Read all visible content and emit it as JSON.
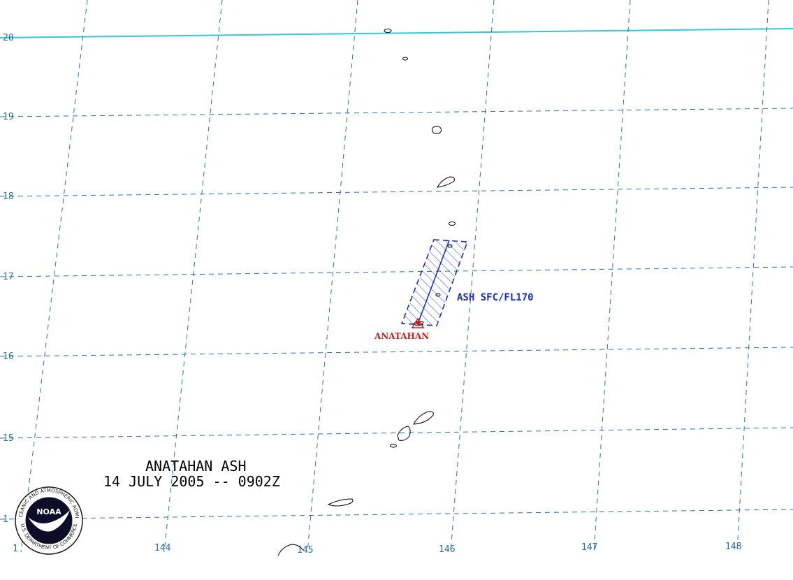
{
  "map": {
    "title_line1": "ANATAHAN ASH",
    "title_line2": "14 JULY 2005 -- 0902Z",
    "latitude_labels": [
      "20",
      "19",
      "18",
      "17",
      "16",
      "15",
      "1"
    ],
    "longitude_labels": [
      "1",
      "144",
      "145",
      "146",
      "147",
      "148"
    ],
    "volcano": {
      "name": "ANATAHAN",
      "marker_color": "#d02020"
    },
    "ash_area": {
      "label": "ASH SFC/FL170",
      "color": "#1a2fbf"
    },
    "jet_line_color": "#33c8dc",
    "grid_color": "#2a6fbf"
  },
  "seal": {
    "center_text": "NOAA",
    "ring_text": "NATIONAL OCEANIC AND ATMOSPHERIC ADMINISTRATION",
    "bottom_text": "U.S. DEPARTMENT OF COMMERCE"
  }
}
